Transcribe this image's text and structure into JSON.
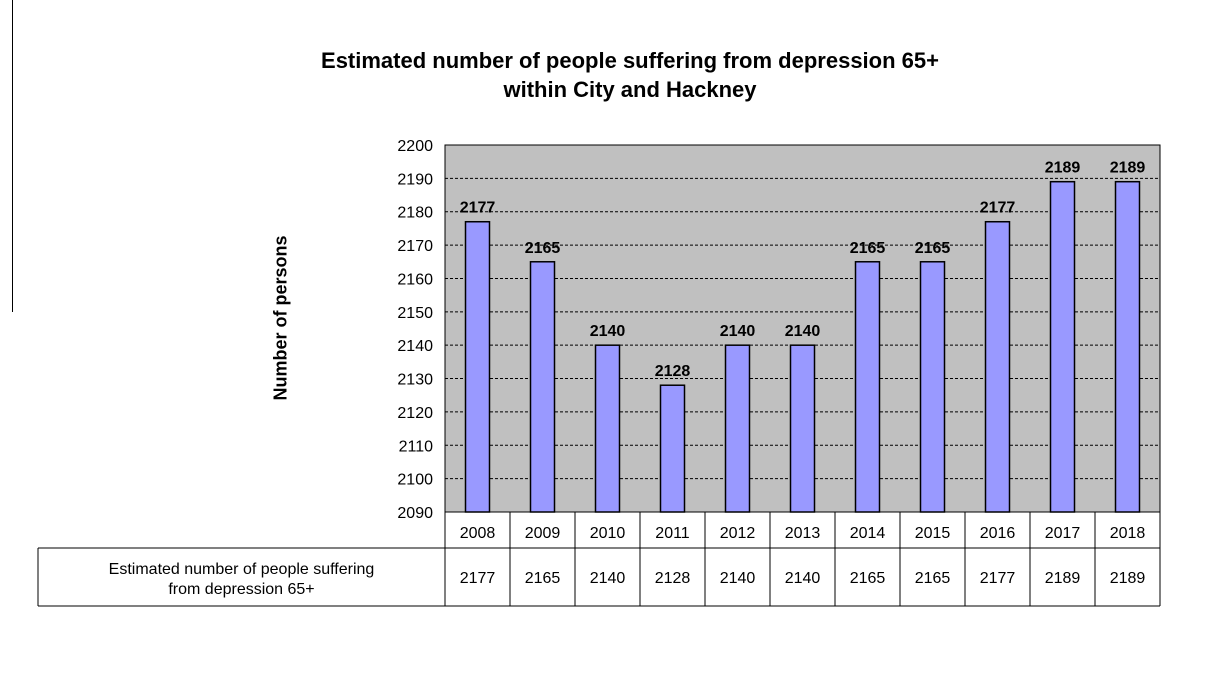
{
  "chart_data": {
    "type": "bar",
    "title": [
      "Estimated number of people suffering from depression 65+",
      "within City and Hackney"
    ],
    "ylabel": "Number of persons",
    "categories": [
      "2008",
      "2009",
      "2010",
      "2011",
      "2012",
      "2013",
      "2014",
      "2015",
      "2016",
      "2017",
      "2018"
    ],
    "series": [
      {
        "name": "Estimated number of people suffering from depression 65+",
        "values": [
          2177,
          2165,
          2140,
          2128,
          2140,
          2140,
          2165,
          2165,
          2177,
          2189,
          2189
        ]
      }
    ],
    "ylim": [
      2090,
      2200
    ],
    "yticks": [
      2090,
      2100,
      2110,
      2120,
      2130,
      2140,
      2150,
      2160,
      2170,
      2180,
      2190,
      2200
    ],
    "grid": true,
    "data_table": true
  },
  "colors": {
    "plot_background": "#c0c0c0",
    "bar_fill": "#9999ff",
    "bar_stroke": "#000000",
    "gridline": "#000000"
  }
}
